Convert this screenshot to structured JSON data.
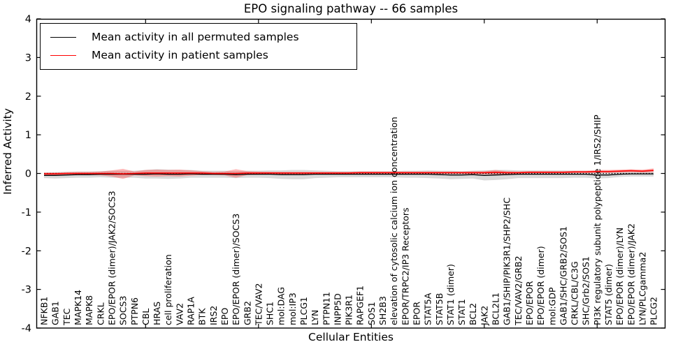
{
  "figure": {
    "title": "EPO signaling pathway -- 66 samples",
    "xlabel": "Cellular Entities",
    "ylabel": "Inferred Activity"
  },
  "legend": {
    "entries": [
      {
        "label": "Mean activity in all permuted samples",
        "color": "#000000"
      },
      {
        "label": "Mean activity in patient samples",
        "color": "#ff0000"
      }
    ],
    "position": "upper left"
  },
  "chart_data": {
    "type": "line",
    "title": "EPO signaling pathway -- 66 samples",
    "xlabel": "Cellular Entities",
    "ylabel": "Inferred Activity",
    "ylim": [
      -4,
      4
    ],
    "yticks": [
      -4,
      -3,
      -2,
      -1,
      0,
      1,
      2,
      3,
      4
    ],
    "grid": false,
    "legend_position": "upper left",
    "zero_line": {
      "style": "dotted",
      "color": "#000000"
    },
    "band_note": "bands show +/- one std around each mean line",
    "colors": {
      "permuted_line": "#000000",
      "permuted_band": "#aaaaaa",
      "patient_line": "#ff0000",
      "patient_band": "#ff2a2a"
    },
    "categories": [
      "NFKB1",
      "GAB1",
      "TEC",
      "MAPK14",
      "MAPK8",
      "CRKL",
      "EPO/EPOR (dimer)/JAK2/SOCS3",
      "SOCS3",
      "PTPN6",
      "CBL",
      "HRAS",
      "cell proliferation",
      "VAV2",
      "RAP1A",
      "BTK",
      "IRS2",
      "EPO",
      "EPO/EPOR (dimer)/SOCS3",
      "GRB2",
      "TEC/VAV2",
      "SHC1",
      "mol:DAG",
      "mol:IP3",
      "PLCG1",
      "LYN",
      "PTPN11",
      "INPP5D",
      "PIK3R1",
      "RAPGEF1",
      "SOS1",
      "SH2B3",
      "elevation of cytosolic calcium ion concentration",
      "EPOR/TRPC2/IP3 Receptors",
      "EPOR",
      "STAT5A",
      "STAT5B",
      "STAT1 (dimer)",
      "STAT1",
      "BCL2",
      "JAK2",
      "BCL2L1",
      "GAB1/SHIP/PIK3R1/SHP2/SHC",
      "TEC/VAV2/GRB2",
      "EPO/EPOR",
      "EPO/EPOR (dimer)",
      "mol:GDP",
      "GAB1/SHC/GRB2/SOS1",
      "CRKL/CBL/C3G",
      "SHC/Grb2/SOS1",
      "PI3K regulatory subunit polypeptide 1/IRS2/SHIP",
      "STAT5 (dimer)",
      "EPO/EPOR (dimer)/LYN",
      "EPO/EPOR (dimer)/JAK2",
      "LYN/PLCgamma2",
      "PLCG2"
    ],
    "series": [
      {
        "name": "Mean activity in all permuted samples",
        "values": [
          -0.05,
          -0.05,
          -0.04,
          -0.03,
          -0.03,
          -0.02,
          -0.02,
          -0.02,
          -0.02,
          -0.02,
          -0.01,
          -0.02,
          -0.02,
          -0.01,
          -0.02,
          -0.02,
          -0.02,
          -0.03,
          -0.02,
          -0.02,
          -0.02,
          -0.03,
          -0.03,
          -0.03,
          -0.02,
          -0.02,
          -0.02,
          -0.02,
          -0.02,
          -0.02,
          -0.02,
          -0.02,
          -0.02,
          -0.02,
          -0.02,
          -0.03,
          -0.04,
          -0.04,
          -0.03,
          -0.05,
          -0.04,
          -0.03,
          -0.02,
          -0.02,
          -0.02,
          -0.02,
          -0.02,
          -0.02,
          -0.02,
          -0.04,
          -0.04,
          -0.02,
          -0.01,
          -0.01,
          -0.01
        ],
        "band": [
          0.07,
          0.08,
          0.08,
          0.08,
          0.08,
          0.08,
          0.09,
          0.09,
          0.09,
          0.11,
          0.12,
          0.12,
          0.11,
          0.1,
          0.09,
          0.09,
          0.09,
          0.09,
          0.09,
          0.09,
          0.1,
          0.11,
          0.12,
          0.12,
          0.1,
          0.09,
          0.08,
          0.08,
          0.08,
          0.08,
          0.08,
          0.08,
          0.09,
          0.09,
          0.1,
          0.1,
          0.11,
          0.1,
          0.1,
          0.13,
          0.13,
          0.12,
          0.1,
          0.1,
          0.1,
          0.1,
          0.1,
          0.09,
          0.09,
          0.09,
          0.08,
          0.07,
          0.07,
          0.07,
          0.07
        ]
      },
      {
        "name": "Mean activity in patient samples",
        "values": [
          -0.01,
          -0.01,
          0.0,
          0.0,
          0.0,
          0.0,
          0.0,
          -0.01,
          0.0,
          0.01,
          0.01,
          0.01,
          0.01,
          0.01,
          0.01,
          0.0,
          0.0,
          0.0,
          0.01,
          0.01,
          0.01,
          0.01,
          0.01,
          0.01,
          0.01,
          0.01,
          0.01,
          0.01,
          0.02,
          0.02,
          0.02,
          0.02,
          0.02,
          0.02,
          0.02,
          0.02,
          0.02,
          0.02,
          0.02,
          0.02,
          0.03,
          0.02,
          0.02,
          0.03,
          0.03,
          0.03,
          0.03,
          0.04,
          0.04,
          0.05,
          0.05,
          0.06,
          0.07,
          0.06,
          0.08
        ],
        "band": [
          0.035,
          0.035,
          0.035,
          0.04,
          0.04,
          0.05,
          0.08,
          0.13,
          0.05,
          0.08,
          0.09,
          0.08,
          0.09,
          0.07,
          0.05,
          0.04,
          0.05,
          0.11,
          0.05,
          0.04,
          0.035,
          0.03,
          0.03,
          0.03,
          0.03,
          0.03,
          0.03,
          0.03,
          0.03,
          0.03,
          0.03,
          0.03,
          0.03,
          0.03,
          0.03,
          0.03,
          0.03,
          0.03,
          0.04,
          0.04,
          0.06,
          0.04,
          0.03,
          0.03,
          0.03,
          0.03,
          0.03,
          0.03,
          0.03,
          0.04,
          0.04,
          0.04,
          0.04,
          0.04,
          0.05
        ]
      }
    ]
  }
}
